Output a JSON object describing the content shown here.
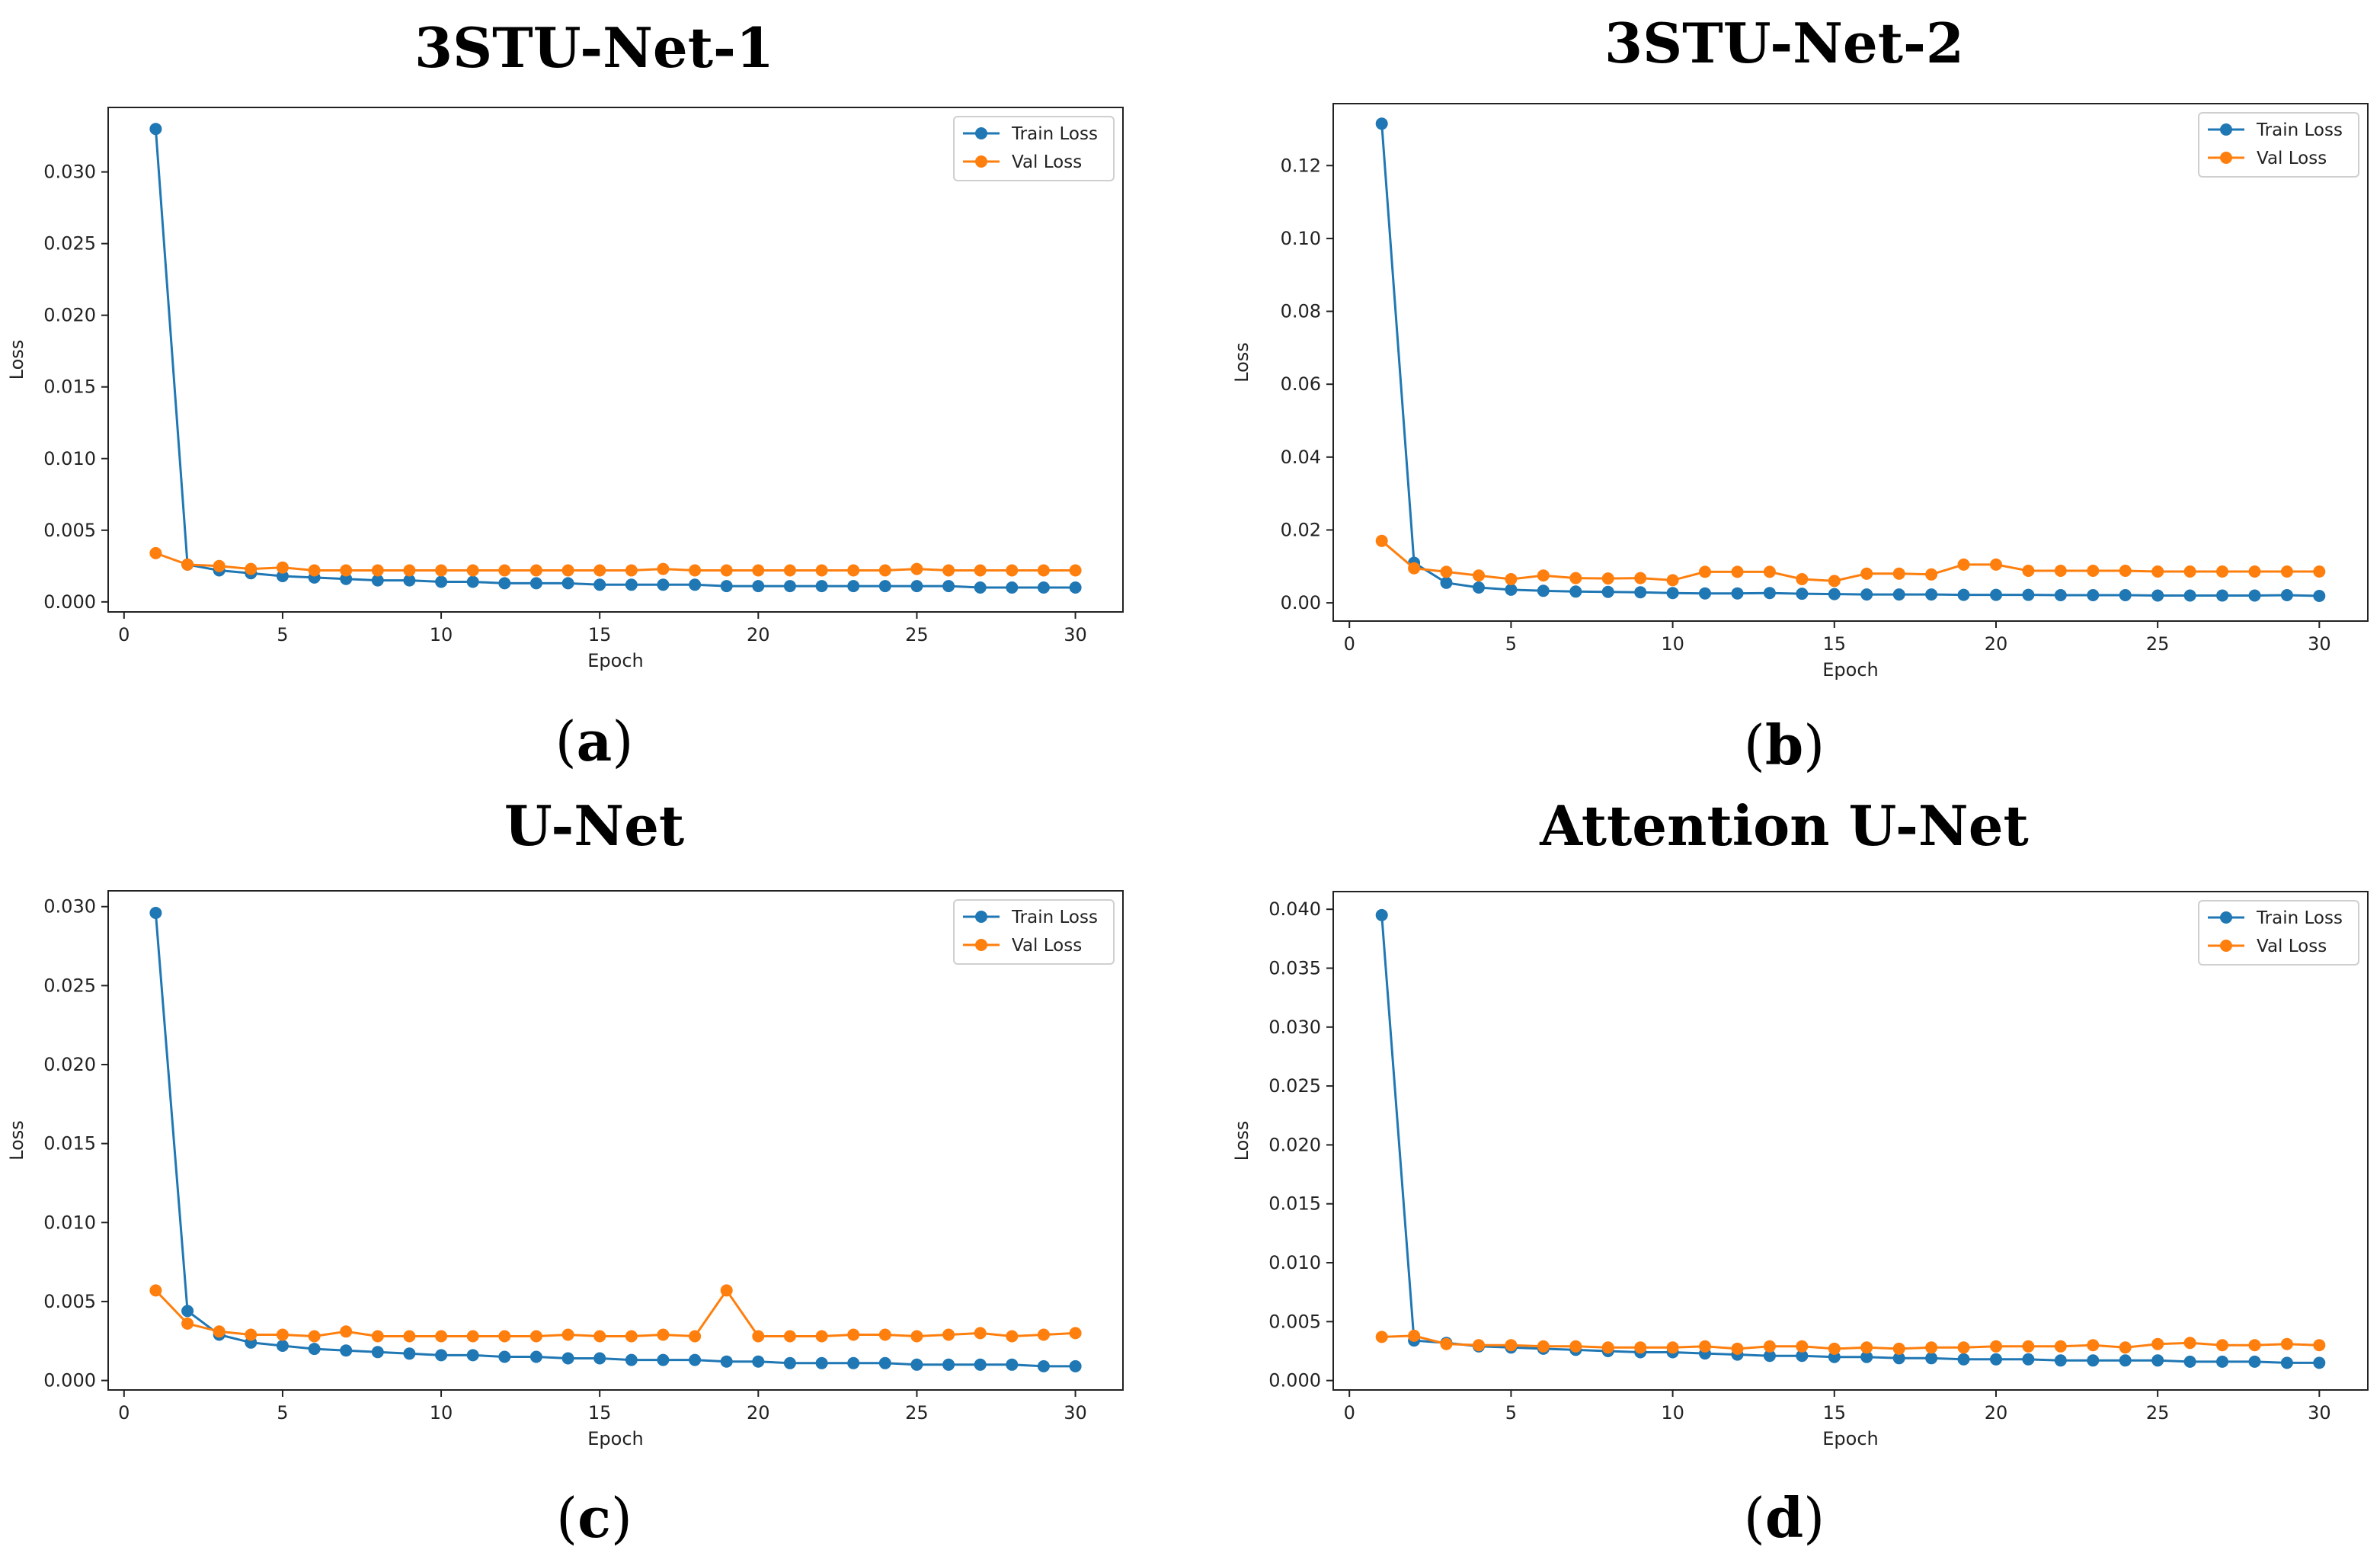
{
  "colors": {
    "train": "#1f77b4",
    "val": "#ff7f0e"
  },
  "panels": [
    {
      "title": "3STU-Net-1",
      "letter": "a"
    },
    {
      "title": "3STU-Net-2",
      "letter": "b"
    },
    {
      "title": "U-Net",
      "letter": "c"
    },
    {
      "title": "Attention U-Net",
      "letter": "d"
    }
  ],
  "chart_data": [
    {
      "type": "line",
      "title": "3STU-Net-1",
      "xlabel": "Epoch",
      "ylabel": "Loss",
      "xlim": [
        -0.5,
        31.5
      ],
      "ylim": [
        -0.0007,
        0.0345
      ],
      "xticks": [
        0,
        5,
        10,
        15,
        20,
        25,
        30
      ],
      "yticks": [
        0.0,
        0.005,
        0.01,
        0.015,
        0.02,
        0.025,
        0.03
      ],
      "ytick_labels": [
        "0.000",
        "0.005",
        "0.010",
        "0.015",
        "0.020",
        "0.025",
        "0.030"
      ],
      "x": [
        1,
        2,
        3,
        4,
        5,
        6,
        7,
        8,
        9,
        10,
        11,
        12,
        13,
        14,
        15,
        16,
        17,
        18,
        19,
        20,
        21,
        22,
        23,
        24,
        25,
        26,
        27,
        28,
        29,
        30
      ],
      "series": [
        {
          "name": "Train Loss",
          "values": [
            0.033,
            0.0026,
            0.0022,
            0.002,
            0.0018,
            0.0017,
            0.0016,
            0.0015,
            0.0015,
            0.0014,
            0.0014,
            0.0013,
            0.0013,
            0.0013,
            0.0012,
            0.0012,
            0.0012,
            0.0012,
            0.0011,
            0.0011,
            0.0011,
            0.0011,
            0.0011,
            0.0011,
            0.0011,
            0.0011,
            0.001,
            0.001,
            0.001,
            0.001
          ]
        },
        {
          "name": "Val Loss",
          "values": [
            0.0034,
            0.0026,
            0.0025,
            0.0023,
            0.0024,
            0.0022,
            0.0022,
            0.0022,
            0.0022,
            0.0022,
            0.0022,
            0.0022,
            0.0022,
            0.0022,
            0.0022,
            0.0022,
            0.0023,
            0.0022,
            0.0022,
            0.0022,
            0.0022,
            0.0022,
            0.0022,
            0.0022,
            0.0023,
            0.0022,
            0.0022,
            0.0022,
            0.0022,
            0.0022
          ]
        }
      ],
      "legend": "top-right"
    },
    {
      "type": "line",
      "title": "3STU-Net-2",
      "xlabel": "Epoch",
      "ylabel": "Loss",
      "xlim": [
        -0.5,
        31.5
      ],
      "ylim": [
        -0.005,
        0.137
      ],
      "xticks": [
        0,
        5,
        10,
        15,
        20,
        25,
        30
      ],
      "yticks": [
        0.0,
        0.02,
        0.04,
        0.06,
        0.08,
        0.1,
        0.12
      ],
      "ytick_labels": [
        "0.00",
        "0.02",
        "0.04",
        "0.06",
        "0.08",
        "0.10",
        "0.12"
      ],
      "x": [
        1,
        2,
        3,
        4,
        5,
        6,
        7,
        8,
        9,
        10,
        11,
        12,
        13,
        14,
        15,
        16,
        17,
        18,
        19,
        20,
        21,
        22,
        23,
        24,
        25,
        26,
        27,
        28,
        29,
        30
      ],
      "series": [
        {
          "name": "Train Loss",
          "values": [
            0.1315,
            0.011,
            0.0055,
            0.0042,
            0.0036,
            0.0033,
            0.0031,
            0.003,
            0.0029,
            0.0027,
            0.0026,
            0.0026,
            0.0027,
            0.0025,
            0.0024,
            0.0023,
            0.0023,
            0.0023,
            0.0022,
            0.0022,
            0.0022,
            0.0021,
            0.0021,
            0.0021,
            0.002,
            0.002,
            0.002,
            0.002,
            0.0021,
            0.0019
          ]
        },
        {
          "name": "Val Loss",
          "values": [
            0.017,
            0.0095,
            0.0085,
            0.0075,
            0.0065,
            0.0075,
            0.0068,
            0.0067,
            0.0068,
            0.0062,
            0.0085,
            0.0085,
            0.0085,
            0.0065,
            0.006,
            0.008,
            0.008,
            0.0078,
            0.0105,
            0.0105,
            0.0088,
            0.0088,
            0.0088,
            0.0088,
            0.0086,
            0.0086,
            0.0086,
            0.0086,
            0.0086,
            0.0086
          ]
        }
      ],
      "legend": "top-right"
    },
    {
      "type": "line",
      "title": "U-Net",
      "xlabel": "Epoch",
      "ylabel": "Loss",
      "xlim": [
        -0.5,
        31.5
      ],
      "ylim": [
        -0.0006,
        0.031
      ],
      "xticks": [
        0,
        5,
        10,
        15,
        20,
        25,
        30
      ],
      "yticks": [
        0.0,
        0.005,
        0.01,
        0.015,
        0.02,
        0.025,
        0.03
      ],
      "ytick_labels": [
        "0.000",
        "0.005",
        "0.010",
        "0.015",
        "0.020",
        "0.025",
        "0.030"
      ],
      "x": [
        1,
        2,
        3,
        4,
        5,
        6,
        7,
        8,
        9,
        10,
        11,
        12,
        13,
        14,
        15,
        16,
        17,
        18,
        19,
        20,
        21,
        22,
        23,
        24,
        25,
        26,
        27,
        28,
        29,
        30
      ],
      "series": [
        {
          "name": "Train Loss",
          "values": [
            0.0296,
            0.0044,
            0.0029,
            0.0024,
            0.0022,
            0.002,
            0.0019,
            0.0018,
            0.0017,
            0.0016,
            0.0016,
            0.0015,
            0.0015,
            0.0014,
            0.0014,
            0.0013,
            0.0013,
            0.0013,
            0.0012,
            0.0012,
            0.0011,
            0.0011,
            0.0011,
            0.0011,
            0.001,
            0.001,
            0.001,
            0.001,
            0.0009,
            0.0009
          ]
        },
        {
          "name": "Val Loss",
          "values": [
            0.0057,
            0.0036,
            0.0031,
            0.0029,
            0.0029,
            0.0028,
            0.0031,
            0.0028,
            0.0028,
            0.0028,
            0.0028,
            0.0028,
            0.0028,
            0.0029,
            0.0028,
            0.0028,
            0.0029,
            0.0028,
            0.0057,
            0.0028,
            0.0028,
            0.0028,
            0.0029,
            0.0029,
            0.0028,
            0.0029,
            0.003,
            0.0028,
            0.0029,
            0.003
          ]
        }
      ],
      "legend": "top-right"
    },
    {
      "type": "line",
      "title": "Attention U-Net",
      "xlabel": "Epoch",
      "ylabel": "Loss",
      "xlim": [
        -0.5,
        31.5
      ],
      "ylim": [
        -0.0008,
        0.0415
      ],
      "xticks": [
        0,
        5,
        10,
        15,
        20,
        25,
        30
      ],
      "yticks": [
        0.0,
        0.005,
        0.01,
        0.015,
        0.02,
        0.025,
        0.03,
        0.035,
        0.04
      ],
      "ytick_labels": [
        "0.000",
        "0.005",
        "0.010",
        "0.015",
        "0.020",
        "0.025",
        "0.030",
        "0.035",
        "0.040"
      ],
      "x": [
        1,
        2,
        3,
        4,
        5,
        6,
        7,
        8,
        9,
        10,
        11,
        12,
        13,
        14,
        15,
        16,
        17,
        18,
        19,
        20,
        21,
        22,
        23,
        24,
        25,
        26,
        27,
        28,
        29,
        30
      ],
      "series": [
        {
          "name": "Train Loss",
          "values": [
            0.0395,
            0.0034,
            0.0032,
            0.0029,
            0.0028,
            0.0027,
            0.0026,
            0.0025,
            0.0024,
            0.0024,
            0.0023,
            0.0022,
            0.0021,
            0.0021,
            0.002,
            0.002,
            0.0019,
            0.0019,
            0.0018,
            0.0018,
            0.0018,
            0.0017,
            0.0017,
            0.0017,
            0.0017,
            0.0016,
            0.0016,
            0.0016,
            0.0015,
            0.0015
          ]
        },
        {
          "name": "Val Loss",
          "values": [
            0.0037,
            0.0038,
            0.0031,
            0.003,
            0.003,
            0.0029,
            0.0029,
            0.0028,
            0.0028,
            0.0028,
            0.0029,
            0.0027,
            0.0029,
            0.0029,
            0.0027,
            0.0028,
            0.0027,
            0.0028,
            0.0028,
            0.0029,
            0.0029,
            0.0029,
            0.003,
            0.0028,
            0.0031,
            0.0032,
            0.003,
            0.003,
            0.0031,
            0.003
          ]
        }
      ],
      "legend": "top-right"
    }
  ]
}
